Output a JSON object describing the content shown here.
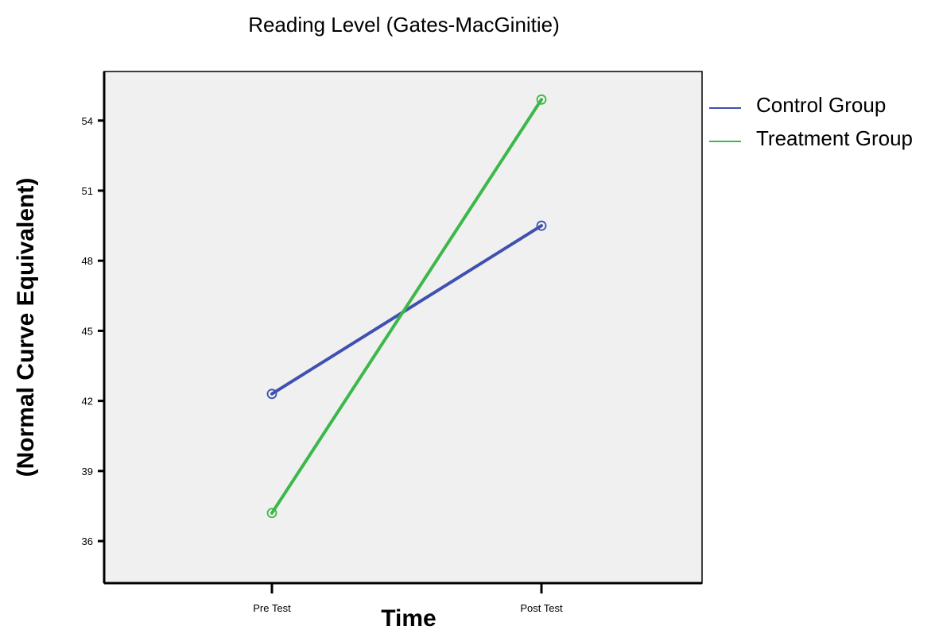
{
  "chart_data": {
    "type": "line",
    "title": "Reading Level (Gates-MacGinitie)",
    "xlabel": "Time",
    "ylabel": "(Normal Curve Equivalent)",
    "categories": [
      "Pre Test",
      "Post Test"
    ],
    "y_ticks": [
      36,
      39,
      42,
      45,
      48,
      51,
      54
    ],
    "ylim": [
      34.2,
      56.1
    ],
    "grid": false,
    "legend_position": "right",
    "plot_background": "#f0f0f0",
    "series": [
      {
        "name": "Control Group",
        "values": [
          42.3,
          49.5
        ],
        "color": "#3f51b0"
      },
      {
        "name": "Treatment Group",
        "values": [
          37.2,
          54.9
        ],
        "color": "#3cb84a"
      }
    ]
  }
}
